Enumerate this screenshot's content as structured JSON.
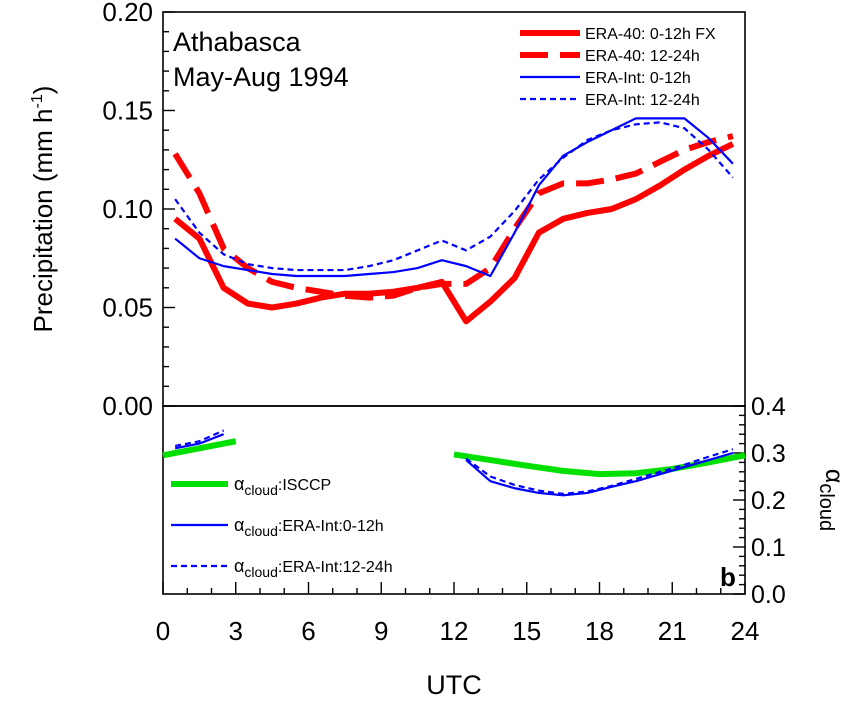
{
  "chart_data": [
    {
      "type": "line",
      "panel": "upper",
      "title": "Athabasca",
      "subtitle": "May-Aug 1994",
      "ylabel_main": "Precipitation (mm h",
      "ylabel_sup": "-1",
      "ylabel_close": ")",
      "ylim": [
        0.0,
        0.2
      ],
      "yticks": [
        "0.00",
        "0.05",
        "0.10",
        "0.15",
        "0.20"
      ],
      "legend_position": "top-right",
      "series": [
        {
          "name": "ERA-40: 0-12h FX",
          "color": "#ff0000",
          "style": "solid-thick",
          "x": [
            0.5,
            1.5,
            2.5,
            3.5,
            4.5,
            5.5,
            6.5,
            7.5,
            8.5,
            9.5,
            10.5,
            11.5,
            12.5,
            13.5,
            14.5,
            15.5,
            16.5,
            17.5,
            18.5,
            19.5,
            20.5,
            21.5,
            22.5,
            23.5
          ],
          "y": [
            0.095,
            0.085,
            0.06,
            0.052,
            0.05,
            0.052,
            0.055,
            0.057,
            0.057,
            0.058,
            0.06,
            0.063,
            0.043,
            0.053,
            0.065,
            0.088,
            0.095,
            0.098,
            0.1,
            0.105,
            0.112,
            0.12,
            0.127,
            0.133
          ]
        },
        {
          "name": "ERA-40: 12-24h",
          "color": "#ff0000",
          "style": "dashed-thick",
          "x": [
            0.5,
            1.5,
            2.5,
            3.5,
            4.5,
            5.5,
            6.5,
            7.5,
            8.5,
            9.5,
            10.5,
            11.5,
            12.5,
            13.5,
            14.5,
            15.5,
            16.5,
            17.5,
            18.5,
            19.5,
            20.5,
            21.5,
            22.5,
            23.5
          ],
          "y": [
            0.128,
            0.108,
            0.08,
            0.07,
            0.063,
            0.06,
            0.058,
            0.056,
            0.055,
            0.056,
            0.06,
            0.062,
            0.062,
            0.07,
            0.09,
            0.108,
            0.113,
            0.113,
            0.115,
            0.118,
            0.124,
            0.13,
            0.134,
            0.137
          ]
        },
        {
          "name": "ERA-Int: 0-12h",
          "color": "#0000ff",
          "style": "solid",
          "x": [
            0.5,
            1.5,
            2.5,
            3.5,
            4.5,
            5.5,
            6.5,
            7.5,
            8.5,
            9.5,
            10.5,
            11.5,
            12.5,
            13.5,
            14.5,
            15.5,
            16.5,
            17.5,
            18.5,
            19.5,
            20.5,
            21.5,
            22.5,
            23.5
          ],
          "y": [
            0.085,
            0.075,
            0.071,
            0.069,
            0.067,
            0.066,
            0.066,
            0.066,
            0.067,
            0.068,
            0.07,
            0.074,
            0.071,
            0.066,
            0.088,
            0.112,
            0.127,
            0.134,
            0.14,
            0.146,
            0.146,
            0.146,
            0.136,
            0.123
          ]
        },
        {
          "name": "ERA-Int: 12-24h",
          "color": "#0000ff",
          "style": "dashed",
          "x": [
            0.5,
            1.5,
            2.5,
            3.5,
            4.5,
            5.5,
            6.5,
            7.5,
            8.5,
            9.5,
            10.5,
            11.5,
            12.5,
            13.5,
            14.5,
            15.5,
            16.5,
            17.5,
            18.5,
            19.5,
            20.5,
            21.5,
            22.5,
            23.5
          ],
          "y": [
            0.105,
            0.088,
            0.077,
            0.072,
            0.07,
            0.069,
            0.069,
            0.069,
            0.071,
            0.074,
            0.079,
            0.084,
            0.079,
            0.086,
            0.099,
            0.115,
            0.126,
            0.135,
            0.14,
            0.143,
            0.144,
            0.141,
            0.13,
            0.116
          ]
        }
      ]
    },
    {
      "type": "line",
      "panel": "lower",
      "xlabel": "UTC",
      "xticks": [
        "0",
        "3",
        "6",
        "9",
        "12",
        "15",
        "18",
        "21",
        "24"
      ],
      "xlim": [
        0,
        24
      ],
      "ylim": [
        0.0,
        0.4
      ],
      "yticks": [
        "0.0",
        "0.1",
        "0.2",
        "0.3",
        "0.4"
      ],
      "ylabel_alpha": "α",
      "ylabel_sub": "cloud",
      "panel_label": "b",
      "legend_position": "left",
      "legend_symbol": "α",
      "legend_sub": "cloud",
      "series": [
        {
          "name": "ISCCP",
          "label": ":ISCCP",
          "color": "#00e000",
          "style": "solid-thick",
          "segments": [
            {
              "x": [
                0.0,
                1.5,
                3.0
              ],
              "y": [
                0.295,
                0.31,
                0.325
              ]
            },
            {
              "x": [
                12.0,
                13.5,
                15.0,
                16.5,
                18.0,
                19.5,
                21.0,
                22.5,
                24.0
              ],
              "y": [
                0.297,
                0.285,
                0.273,
                0.262,
                0.255,
                0.257,
                0.266,
                0.28,
                0.295
              ]
            }
          ]
        },
        {
          "name": "ERA-Int:0-12h",
          "label": ":ERA-Int:0-12h",
          "color": "#0000ff",
          "style": "solid",
          "segments": [
            {
              "x": [
                0.5,
                1.5,
                2.5
              ],
              "y": [
                0.31,
                0.32,
                0.34
              ]
            },
            {
              "x": [
                12.5,
                13.5,
                14.5,
                15.5,
                16.5,
                17.5,
                18.5,
                19.5,
                20.5,
                21.5,
                22.5,
                23.5
              ],
              "y": [
                0.285,
                0.24,
                0.225,
                0.215,
                0.21,
                0.215,
                0.228,
                0.24,
                0.255,
                0.27,
                0.285,
                0.3
              ]
            }
          ]
        },
        {
          "name": "ERA-Int:12-24h",
          "label": ":ERA-Int:12-24h",
          "color": "#0000ff",
          "style": "dashed",
          "segments": [
            {
              "x": [
                0.5,
                1.5,
                2.5
              ],
              "y": [
                0.315,
                0.325,
                0.348
              ]
            },
            {
              "x": [
                12.5,
                13.5,
                14.5,
                15.5,
                16.5,
                17.5,
                18.5,
                19.5,
                20.5,
                21.5,
                22.5,
                23.5
              ],
              "y": [
                0.288,
                0.25,
                0.232,
                0.22,
                0.213,
                0.218,
                0.23,
                0.245,
                0.26,
                0.275,
                0.292,
                0.308
              ]
            }
          ]
        }
      ]
    }
  ]
}
